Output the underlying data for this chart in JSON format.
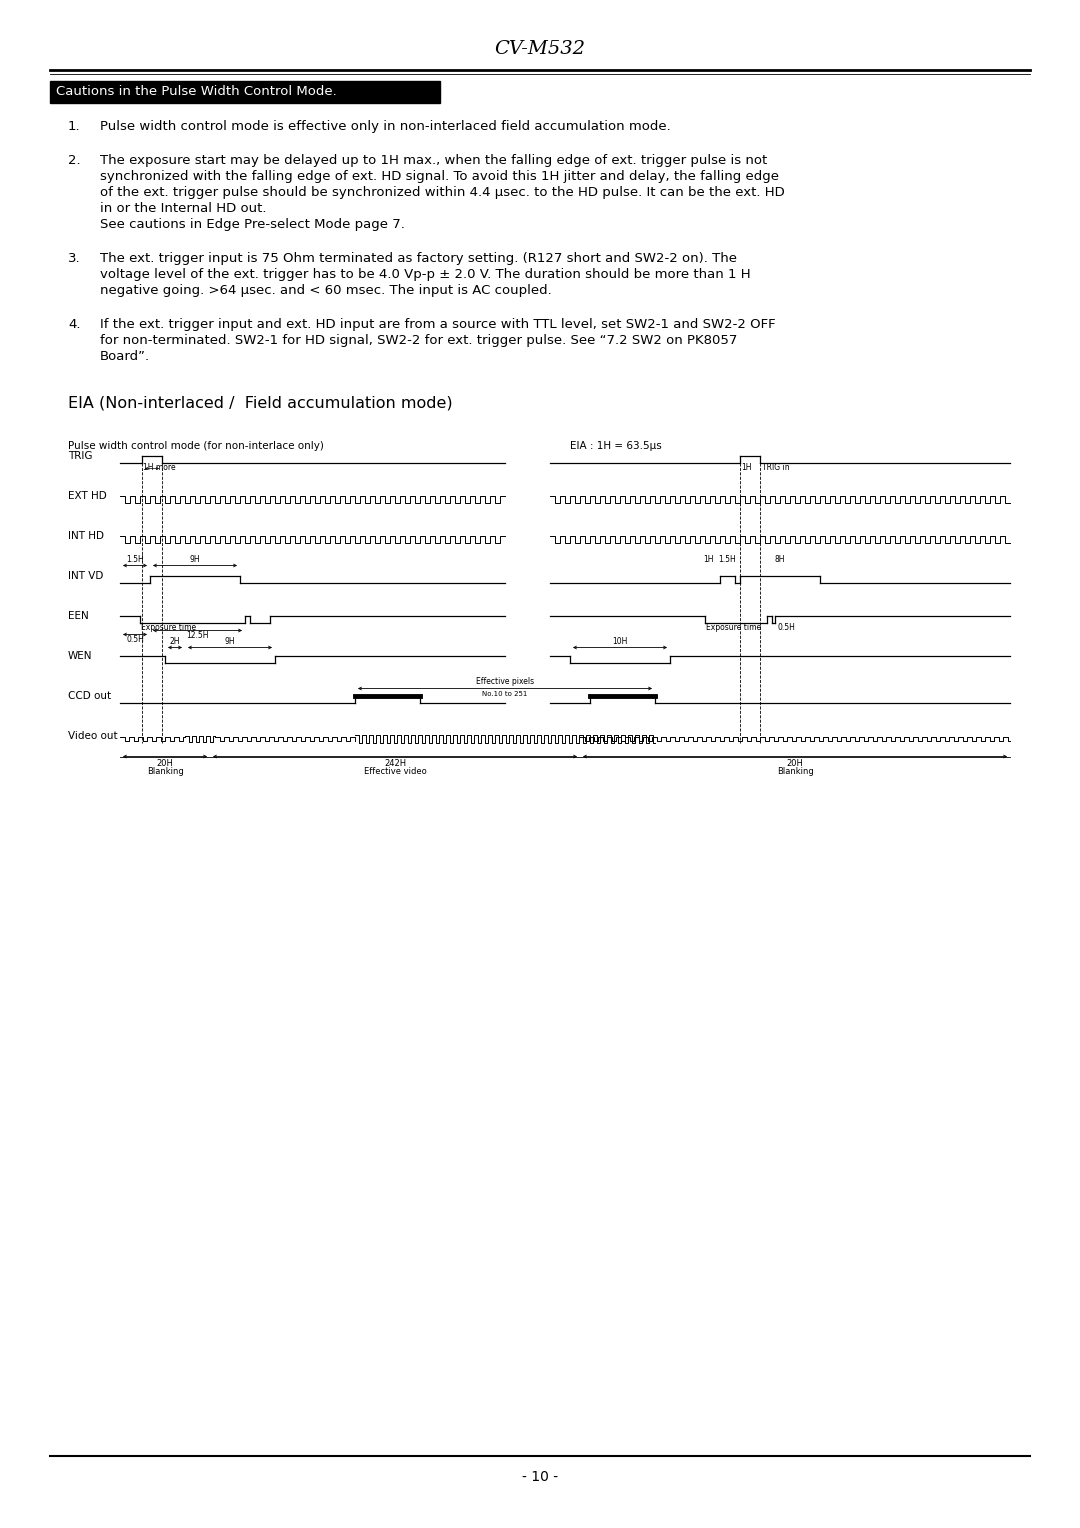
{
  "title": "CV-M532",
  "page_number": "- 10 -",
  "section_header": "Cautions in the Pulse Width Control Mode.",
  "diagram_title": "EIA (Non-interlaced /  Field accumulation mode)",
  "diagram_subtitle": "Pulse width control mode (for non-interlace only)",
  "diagram_note": "EIA : 1H = 63.5μs",
  "bg_color": "#ffffff",
  "caution1": "Pulse width control mode is effective only in non-interlaced field accumulation mode.",
  "caution2a": "The exposure start may be delayed up to 1H max., when the falling edge of ext. trigger pulse is not",
  "caution2b": "synchronized with the falling edge of ext. HD signal. To avoid this 1H jitter and delay, the falling edge",
  "caution2c": "of the ext. trigger pulse should be synchronized within 4.4 μsec. to the HD pulse. It can be the ext. HD",
  "caution2d": "in or the Internal HD out.",
  "caution2e": "See cautions in Edge Pre-select Mode page 7.",
  "caution3a": "The ext. trigger input is 75 Ohm terminated as factory setting. (R127 short and SW2-2 on). The",
  "caution3b": "voltage level of the ext. trigger has to be 4.0 Vp-p ± 2.0 V. The duration should be more than 1 H",
  "caution3c": "negative going. >64 μsec. and < 60 msec. The input is AC coupled.",
  "caution4a": "If the ext. trigger input and ext. HD input are from a source with TTL level, set SW2-1 and SW2-2 OFF",
  "caution4b": "for non-terminated. SW2-1 for HD signal, SW2-2 for ext. trigger pulse. See “7.2 SW2 on PK8057",
  "caution4c": "Board”."
}
